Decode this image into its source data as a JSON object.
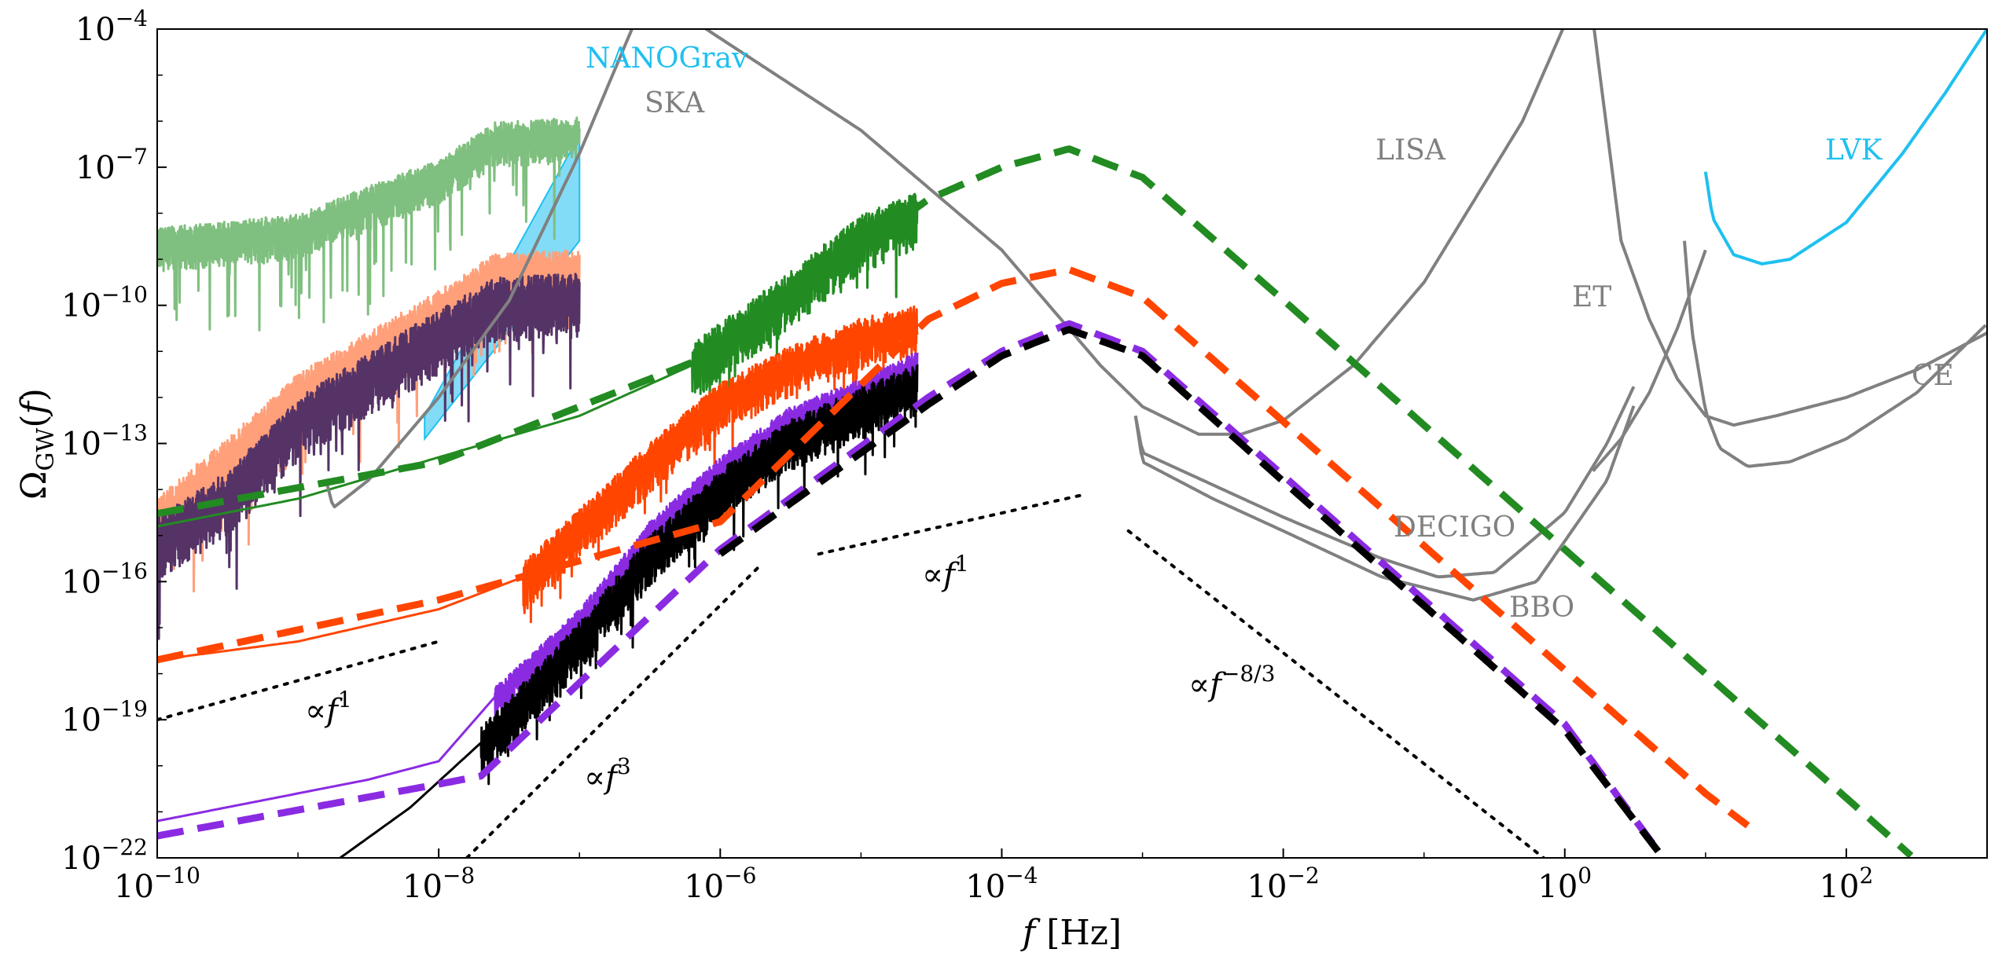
{
  "chart_data": {
    "type": "line",
    "xlabel": "f [Hz]",
    "ylabel": "Ω_GW(f)",
    "xscale": "log",
    "yscale": "log",
    "xlim": [
      1e-10,
      1000
    ],
    "ylim": [
      1e-22,
      0.0001
    ],
    "x_ticks": [
      {
        "value": 1e-10,
        "label": "10",
        "exp": "−10"
      },
      {
        "value": 1e-08,
        "label": "10",
        "exp": "−8"
      },
      {
        "value": 1e-06,
        "label": "10",
        "exp": "−6"
      },
      {
        "value": 0.0001,
        "label": "10",
        "exp": "−4"
      },
      {
        "value": 0.01,
        "label": "10",
        "exp": "−2"
      },
      {
        "value": 1,
        "label": "10",
        "exp": "0"
      },
      {
        "value": 100,
        "label": "10",
        "exp": "2"
      }
    ],
    "y_ticks": [
      {
        "value": 1e-22,
        "label": "10",
        "exp": "−22"
      },
      {
        "value": 1e-19,
        "label": "10",
        "exp": "−19"
      },
      {
        "value": 1e-16,
        "label": "10",
        "exp": "−16"
      },
      {
        "value": 1e-13,
        "label": "10",
        "exp": "−13"
      },
      {
        "value": 1e-10,
        "label": "10",
        "exp": "−10"
      },
      {
        "value": 1e-07,
        "label": "10",
        "exp": "−7"
      },
      {
        "value": 0.0001,
        "label": "10",
        "exp": "−4"
      }
    ],
    "colors": {
      "green": "#228b22",
      "light_green": "#7fbf7f",
      "orange": "#ff4500",
      "light_orange": "#ffa07a",
      "purple": "#8a2be2",
      "black": "#000000",
      "sensitivity_gray": "#808080",
      "nanograv_blue": "#1ec0f0"
    },
    "series": [
      {
        "color": "green",
        "style": "dashed",
        "x": [
          1e-10,
          1e-08,
          1e-06,
          3e-05,
          0.0001,
          0.0003,
          0.001,
          0.01,
          0.1,
          1,
          10,
          100,
          300
        ],
        "y": [
          3e-15,
          4e-14,
          1e-11,
          2e-08,
          1e-07,
          2.5e-07,
          6e-08,
          1.3e-10,
          2.5e-13,
          5e-16,
          1e-18,
          2e-21,
          1e-22
        ]
      },
      {
        "color": "orange",
        "style": "dashed",
        "x": [
          1e-10,
          1e-08,
          1e-06,
          3e-05,
          0.0001,
          0.0003,
          0.001,
          0.01,
          0.1,
          1,
          10,
          20
        ],
        "y": [
          2e-18,
          4e-17,
          2e-15,
          5e-11,
          3e-10,
          6e-10,
          1.5e-10,
          3e-13,
          6e-16,
          1.2e-18,
          2.5e-21,
          5e-22
        ]
      },
      {
        "color": "purple",
        "style": "dashed",
        "x": [
          1e-10,
          1e-08,
          2e-08,
          1e-06,
          3e-05,
          0.0001,
          0.0003,
          0.001,
          0.01,
          0.1,
          1,
          5
        ],
        "y": [
          3e-22,
          4e-21,
          6e-21,
          5e-16,
          1e-12,
          1e-11,
          4e-11,
          1e-11,
          2e-14,
          4e-17,
          8e-20,
          1e-22
        ]
      },
      {
        "color": "black",
        "style": "dashed",
        "x": [
          1e-06,
          3e-05,
          0.0001,
          0.0003,
          0.001,
          0.01,
          0.1,
          1,
          5
        ],
        "y": [
          4e-16,
          7e-13,
          8e-12,
          3e-11,
          8e-12,
          1.5e-14,
          3e-17,
          6e-20,
          1e-22
        ]
      }
    ],
    "detectors": [
      {
        "name": "SKA",
        "color": "sensitivity_gray"
      },
      {
        "name": "LISA",
        "color": "sensitivity_gray"
      },
      {
        "name": "DECIGO",
        "color": "sensitivity_gray"
      },
      {
        "name": "BBO",
        "color": "sensitivity_gray"
      },
      {
        "name": "ET",
        "color": "sensitivity_gray"
      },
      {
        "name": "CE",
        "color": "sensitivity_gray"
      },
      {
        "name": "LVK",
        "color": "nanograv_blue"
      },
      {
        "name": "NANOGrav",
        "color": "nanograv_blue"
      }
    ],
    "slope_annotations": [
      {
        "text": "∝f",
        "exp": "1"
      },
      {
        "text": "∝f",
        "exp": "3"
      },
      {
        "text": "∝f",
        "exp": "1"
      },
      {
        "text": "∝f",
        "exp": "−8/3"
      }
    ]
  }
}
